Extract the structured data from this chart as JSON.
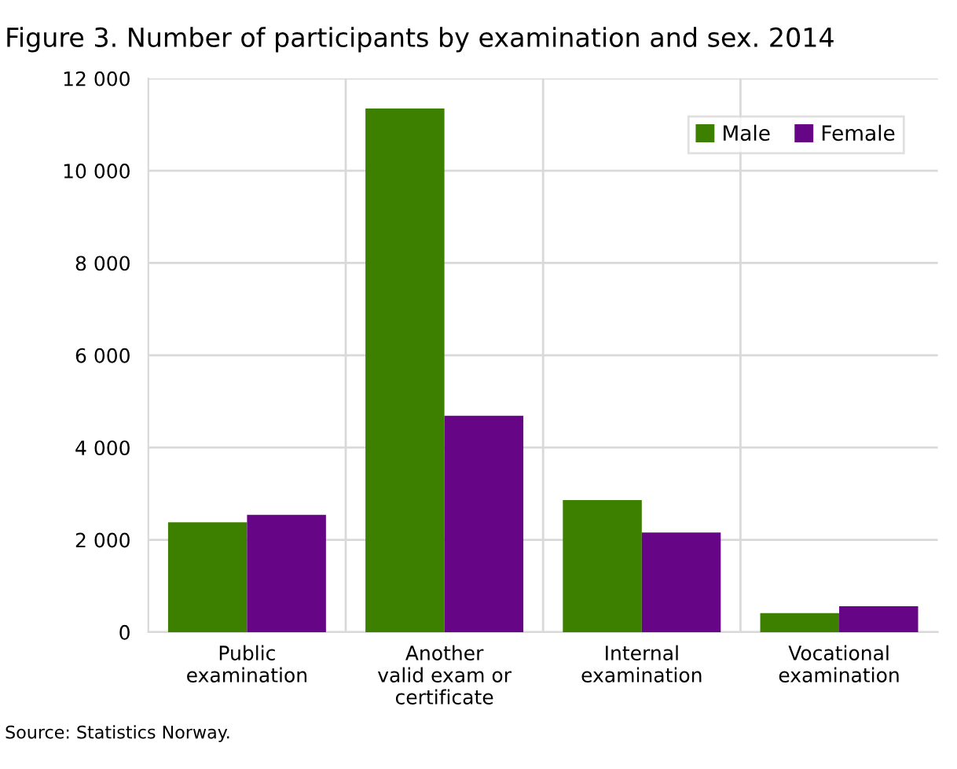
{
  "chart_data": {
    "type": "bar",
    "title": "Figure 3. Number of participants by examination and sex. 2014",
    "categories": [
      "Public\nexamination",
      "Another\nvalid exam or\ncertificate",
      "Internal\nexamination",
      "Vocational\nexamination"
    ],
    "series": [
      {
        "name": "Male",
        "color": "#3d8000",
        "values": [
          2380,
          11350,
          2860,
          410
        ]
      },
      {
        "name": "Female",
        "color": "#660586",
        "values": [
          2540,
          4690,
          2160,
          560
        ]
      }
    ],
    "ylim": [
      0,
      12000
    ],
    "yticks": [
      0,
      {
        "value": 2000,
        "label": "2 000"
      },
      {
        "value": 4000,
        "label": "4 000"
      },
      {
        "value": 6000,
        "label": "6 000"
      },
      {
        "value": 8000,
        "label": "8 000"
      },
      {
        "value": 10000,
        "label": "10 000"
      },
      {
        "value": 12000,
        "label": "12 000"
      }
    ],
    "grid": true,
    "legend": "top right",
    "annotations": [
      "Source: Statistics Norway."
    ]
  }
}
